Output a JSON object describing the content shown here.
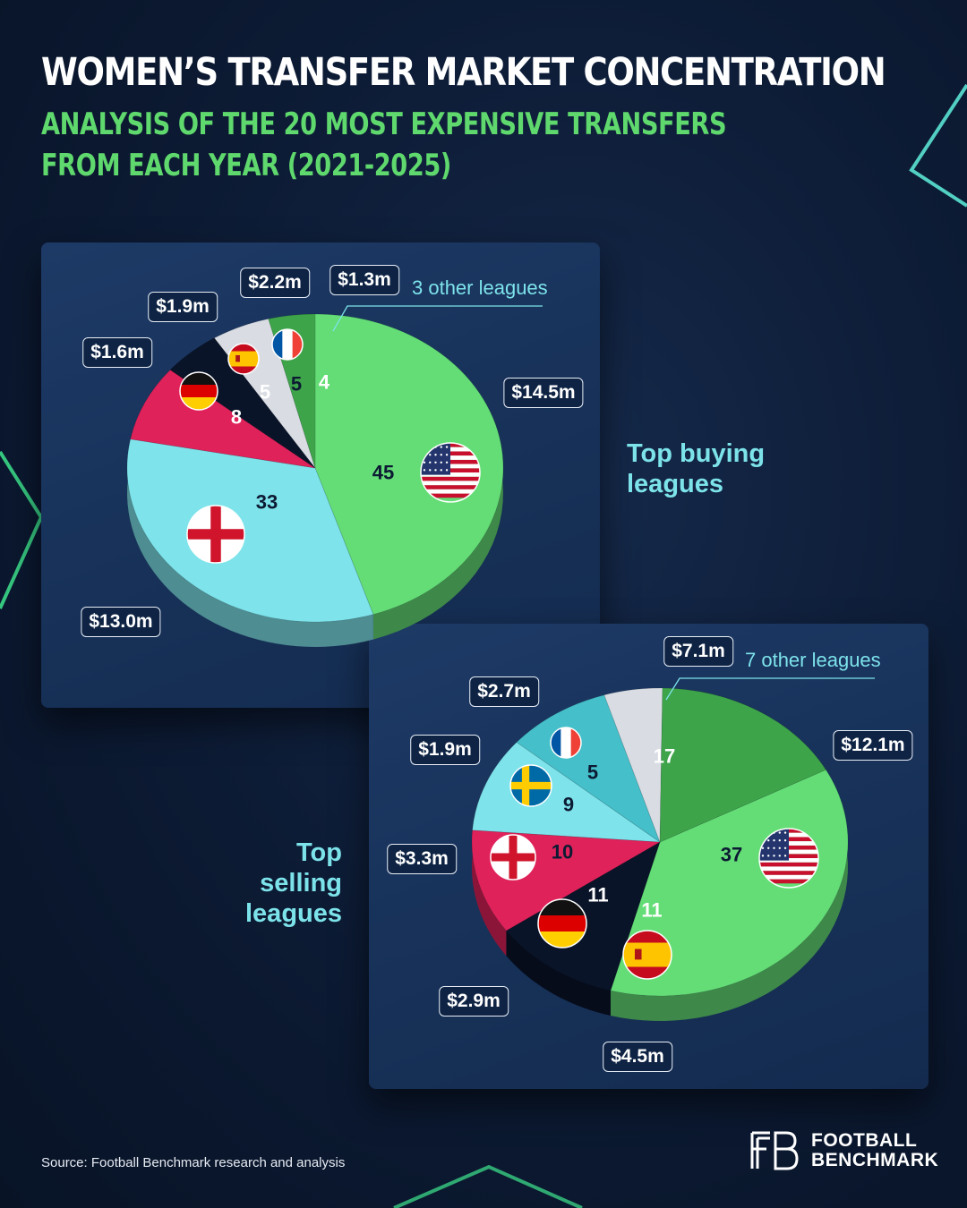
{
  "header": {
    "title": "WOMEN’S TRANSFER MARKET CONCENTRATION",
    "subtitle": "ANALYSIS OF THE 20 MOST EXPENSIVE TRANSFERS FROM EACH YEAR (2021-2025)"
  },
  "chart_data": [
    {
      "type": "pie",
      "id": "buying",
      "title": "Top buying leagues",
      "slices": [
        {
          "country": "USA",
          "count": 45,
          "value": "$14.5m",
          "color": "#64dd76",
          "flag": "usa"
        },
        {
          "country": "England",
          "count": 33,
          "value": "$13.0m",
          "color": "#7ee3ea",
          "flag": "england"
        },
        {
          "country": "Germany",
          "count": 8,
          "value": "$1.6m",
          "color": "#e0225a",
          "flag": "germany"
        },
        {
          "country": "Spain",
          "count": 5,
          "value": "$1.9m",
          "color": "#0a1428",
          "flag": "spain"
        },
        {
          "country": "France",
          "count": 5,
          "value": "$2.2m",
          "color": "#d9dde3",
          "flag": "france"
        },
        {
          "country": "3 other leagues",
          "count": 4,
          "value": "$1.3m",
          "color": "#3ea44a",
          "flag": ""
        }
      ],
      "other_label": "3 other leagues"
    },
    {
      "type": "pie",
      "id": "selling",
      "title": "Top selling leagues",
      "slices": [
        {
          "country": "USA",
          "count": 37,
          "value": "$12.1m",
          "color": "#64dd76",
          "flag": "usa"
        },
        {
          "country": "Spain",
          "count": 11,
          "value": "$4.5m",
          "color": "#0a1428",
          "flag": "spain"
        },
        {
          "country": "Germany",
          "count": 11,
          "value": "$2.9m",
          "color": "#e0225a",
          "flag": "germany"
        },
        {
          "country": "England",
          "count": 10,
          "value": "$3.3m",
          "color": "#7ee3ea",
          "flag": "england"
        },
        {
          "country": "Sweden",
          "count": 9,
          "value": "$1.9m",
          "color": "#45bfc9",
          "flag": "sweden"
        },
        {
          "country": "France",
          "count": 5,
          "value": "$2.7m",
          "color": "#d9dde3",
          "flag": "france"
        },
        {
          "country": "7 other leagues",
          "count": 17,
          "value": "$7.1m",
          "color": "#3ea44a",
          "flag": ""
        }
      ],
      "other_label": "7 other leagues"
    }
  ],
  "labels": {
    "buying_title": "Top buying leagues",
    "selling_title": "Top selling leagues"
  },
  "footer": {
    "source": "Source: Football Benchmark research and analysis",
    "brand_line1": "FOOTBALL",
    "brand_line2": "BENCHMARK"
  },
  "colors": {
    "accent_green": "#5fd86d",
    "accent_cyan": "#7de3ea",
    "panel": "#1a3560",
    "background": "#0c1a33"
  }
}
